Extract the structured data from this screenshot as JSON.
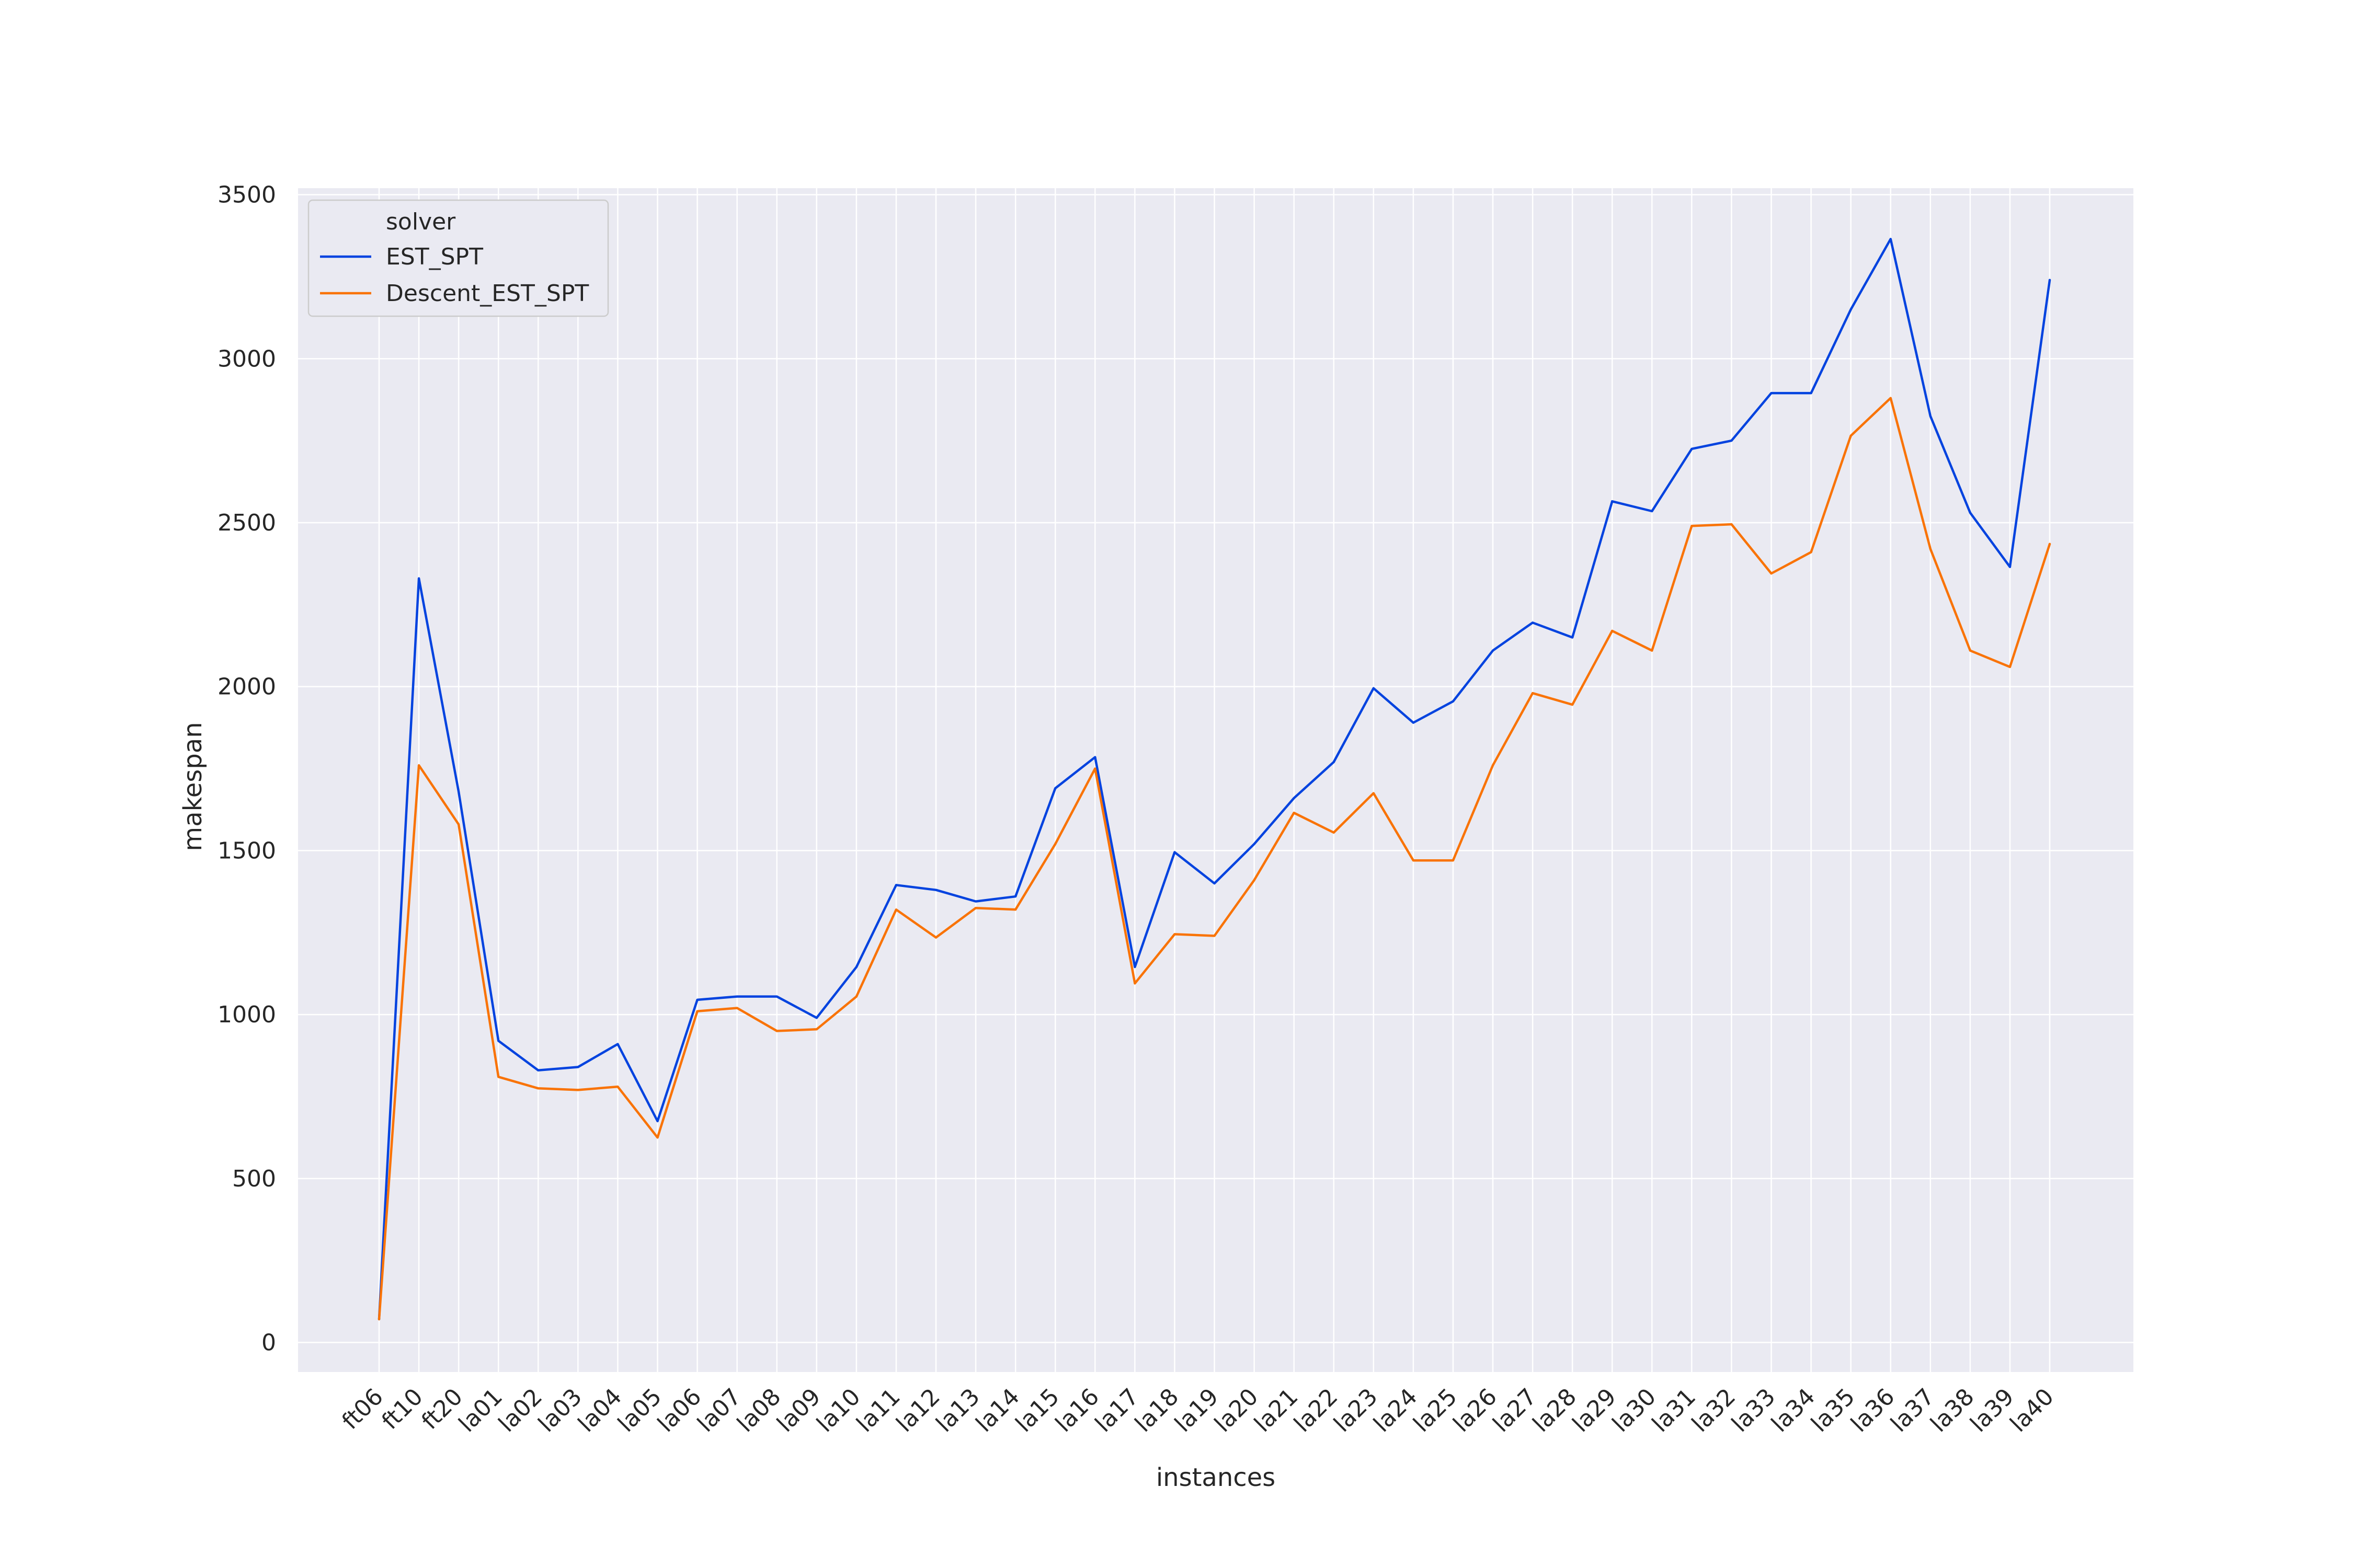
{
  "chart_data": {
    "type": "line",
    "title": "",
    "xlabel": "instances",
    "ylabel": "makespan",
    "ylim": [
      -90,
      3520
    ],
    "yticks": [
      0,
      500,
      1000,
      1500,
      2000,
      2500,
      3000,
      3500
    ],
    "grid": true,
    "legend_position": "top-left",
    "legend_title": "solver",
    "categories": [
      "ft06",
      "ft10",
      "ft20",
      "la01",
      "la02",
      "la03",
      "la04",
      "la05",
      "la06",
      "la07",
      "la08",
      "la09",
      "la10",
      "la11",
      "la12",
      "la13",
      "la14",
      "la15",
      "la16",
      "la17",
      "la18",
      "la19",
      "la20",
      "la21",
      "la22",
      "la23",
      "la24",
      "la25",
      "la26",
      "la27",
      "la28",
      "la29",
      "la30",
      "la31",
      "la32",
      "la33",
      "la34",
      "la35",
      "la36",
      "la37",
      "la38",
      "la39",
      "la40"
    ],
    "series": [
      {
        "name": "EST_SPT",
        "color": "#0343df",
        "values": [
          71,
          2330,
          1680,
          920,
          830,
          840,
          910,
          675,
          1045,
          1055,
          1055,
          990,
          1145,
          1395,
          1380,
          1345,
          1360,
          1690,
          1785,
          1145,
          1495,
          1400,
          1520,
          1660,
          1770,
          1995,
          1890,
          1955,
          2110,
          2195,
          2150,
          2565,
          2535,
          2725,
          2750,
          2895,
          2895,
          3150,
          3365,
          2825,
          2530,
          2365,
          3240
        ]
      },
      {
        "name": "Descent_EST_SPT",
        "color": "#f97306",
        "values": [
          71,
          1760,
          1580,
          810,
          775,
          770,
          780,
          625,
          1010,
          1020,
          950,
          955,
          1055,
          1320,
          1235,
          1325,
          1320,
          1520,
          1750,
          1095,
          1245,
          1240,
          1410,
          1615,
          1555,
          1675,
          1470,
          1470,
          1760,
          1980,
          1945,
          2170,
          2110,
          2490,
          2495,
          2345,
          2410,
          2765,
          2880,
          2420,
          2110,
          2060,
          2435
        ]
      }
    ]
  }
}
